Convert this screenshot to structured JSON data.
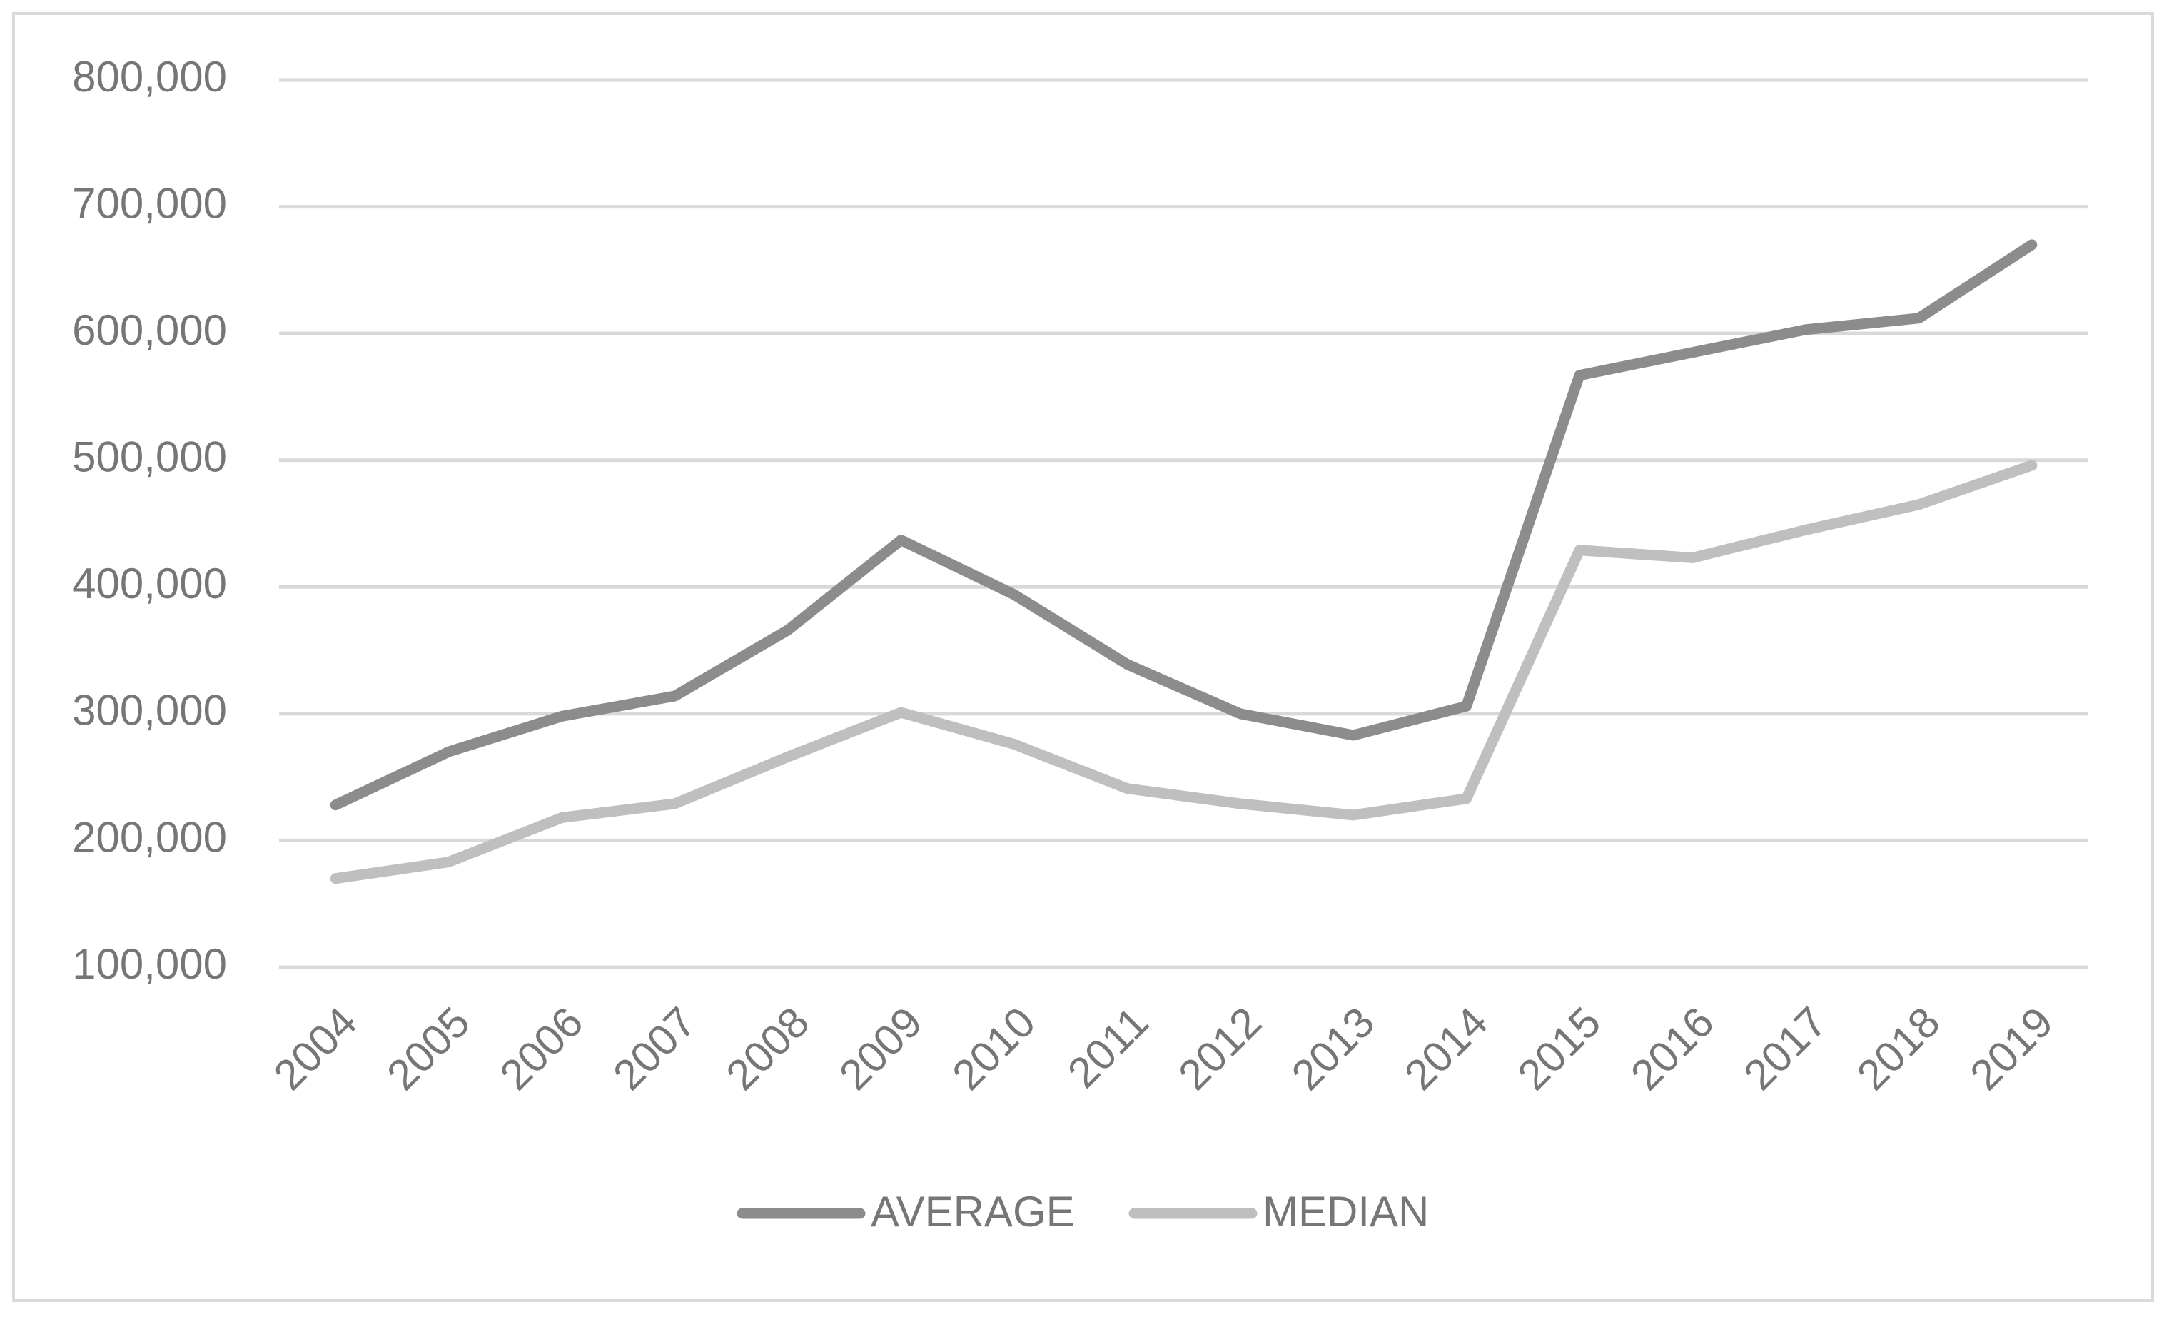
{
  "chart_data": {
    "type": "line",
    "categories": [
      "2004",
      "2005",
      "2006",
      "2007",
      "2008",
      "2009",
      "2010",
      "2011",
      "2012",
      "2013",
      "2014",
      "2015",
      "2016",
      "2017",
      "2018",
      "2019"
    ],
    "series": [
      {
        "name": "AVERAGE",
        "color": "#8c8c8c",
        "values": [
          228000,
          270000,
          298000,
          314000,
          366000,
          437000,
          394000,
          339000,
          300000,
          283000,
          306000,
          567000,
          585000,
          603000,
          612000,
          670000
        ]
      },
      {
        "name": "MEDIAN",
        "color": "#bfbfbf",
        "values": [
          170000,
          183000,
          218000,
          229000,
          266000,
          301000,
          276000,
          241000,
          229000,
          220000,
          233000,
          429000,
          423000,
          445000,
          465000,
          496000
        ]
      }
    ],
    "ylim": [
      100000,
      800000
    ],
    "yticks": [
      {
        "value": 100000,
        "label": "100,000"
      },
      {
        "value": 200000,
        "label": "200,000"
      },
      {
        "value": 300000,
        "label": "300,000"
      },
      {
        "value": 400000,
        "label": "400,000"
      },
      {
        "value": 500000,
        "label": "500,000"
      },
      {
        "value": 600000,
        "label": "600,000"
      },
      {
        "value": 700000,
        "label": "700,000"
      },
      {
        "value": 800000,
        "label": "800,000"
      }
    ],
    "grid": true,
    "legend": "bottom"
  }
}
